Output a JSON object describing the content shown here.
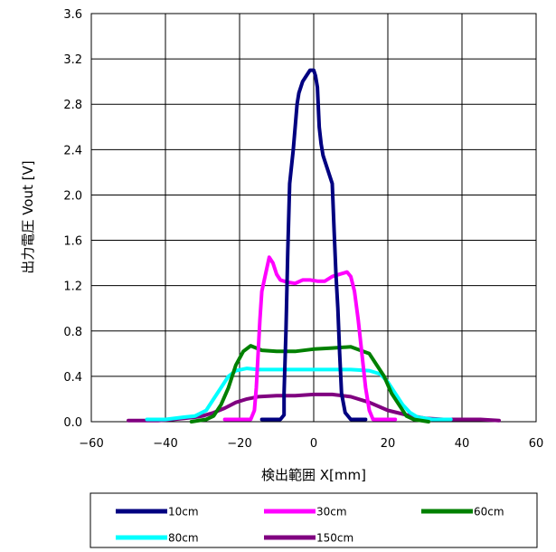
{
  "chart_data": {
    "type": "line",
    "xlabel": "検出範囲  X[mm]",
    "ylabel": "出力電圧  Vout [V]",
    "xlim": [
      -60,
      60
    ],
    "ylim": [
      0,
      3.6
    ],
    "xticks": [
      "−60",
      "−40",
      "−20",
      "0",
      "20",
      "40",
      "60"
    ],
    "yticks": [
      "0.0",
      "0.4",
      "0.8",
      "1.2",
      "1.6",
      "2.0",
      "2.4",
      "2.8",
      "3.2",
      "3.6"
    ],
    "grid": true,
    "legend_position": "bottom",
    "series": [
      {
        "name": "10cm",
        "color": "#000080",
        "points": [
          [
            -14,
            0.02
          ],
          [
            -9,
            0.02
          ],
          [
            -8,
            0.06
          ],
          [
            -8,
            0.25
          ],
          [
            -7.5,
            0.8
          ],
          [
            -7,
            1.5
          ],
          [
            -6.5,
            2.1
          ],
          [
            -6,
            2.25
          ],
          [
            -5.5,
            2.4
          ],
          [
            -5,
            2.6
          ],
          [
            -4.5,
            2.8
          ],
          [
            -4,
            2.9
          ],
          [
            -3,
            3.0
          ],
          [
            -2,
            3.05
          ],
          [
            -1,
            3.1
          ],
          [
            0,
            3.1
          ],
          [
            0.5,
            3.05
          ],
          [
            1,
            2.95
          ],
          [
            1.5,
            2.6
          ],
          [
            2,
            2.45
          ],
          [
            2.5,
            2.35
          ],
          [
            3,
            2.3
          ],
          [
            4,
            2.2
          ],
          [
            5,
            2.1
          ],
          [
            5.5,
            1.7
          ],
          [
            6,
            1.3
          ],
          [
            6.5,
            1.0
          ],
          [
            7,
            0.6
          ],
          [
            7.5,
            0.25
          ],
          [
            8.5,
            0.08
          ],
          [
            10,
            0.02
          ],
          [
            14,
            0.02
          ]
        ]
      },
      {
        "name": "30cm",
        "color": "#ff00ff",
        "points": [
          [
            -24,
            0.02
          ],
          [
            -17,
            0.02
          ],
          [
            -16,
            0.1
          ],
          [
            -15.5,
            0.3
          ],
          [
            -15,
            0.6
          ],
          [
            -14.5,
            0.9
          ],
          [
            -14,
            1.15
          ],
          [
            -13,
            1.3
          ],
          [
            -12,
            1.45
          ],
          [
            -11,
            1.4
          ],
          [
            -10,
            1.3
          ],
          [
            -9,
            1.25
          ],
          [
            -7,
            1.23
          ],
          [
            -5,
            1.22
          ],
          [
            -3,
            1.25
          ],
          [
            -1,
            1.25
          ],
          [
            1,
            1.24
          ],
          [
            3,
            1.24
          ],
          [
            5,
            1.28
          ],
          [
            7,
            1.3
          ],
          [
            9,
            1.32
          ],
          [
            10,
            1.28
          ],
          [
            11,
            1.15
          ],
          [
            12,
            0.9
          ],
          [
            13,
            0.6
          ],
          [
            14,
            0.3
          ],
          [
            15,
            0.1
          ],
          [
            16,
            0.02
          ],
          [
            22,
            0.02
          ]
        ]
      },
      {
        "name": "60cm",
        "color": "#008000",
        "points": [
          [
            -33,
            0.0
          ],
          [
            -29,
            0.02
          ],
          [
            -27,
            0.05
          ],
          [
            -25,
            0.15
          ],
          [
            -23,
            0.3
          ],
          [
            -21,
            0.5
          ],
          [
            -19,
            0.62
          ],
          [
            -17,
            0.67
          ],
          [
            -14,
            0.63
          ],
          [
            -10,
            0.62
          ],
          [
            -5,
            0.62
          ],
          [
            0,
            0.64
          ],
          [
            5,
            0.65
          ],
          [
            10,
            0.66
          ],
          [
            15,
            0.6
          ],
          [
            17,
            0.5
          ],
          [
            19,
            0.4
          ],
          [
            21,
            0.25
          ],
          [
            23,
            0.15
          ],
          [
            25,
            0.05
          ],
          [
            27,
            0.02
          ],
          [
            31,
            0.0
          ]
        ]
      },
      {
        "name": "80cm",
        "color": "#00ffff",
        "points": [
          [
            -45,
            0.02
          ],
          [
            -40,
            0.02
          ],
          [
            -35,
            0.04
          ],
          [
            -32,
            0.05
          ],
          [
            -29,
            0.1
          ],
          [
            -27,
            0.2
          ],
          [
            -25,
            0.3
          ],
          [
            -23,
            0.4
          ],
          [
            -21,
            0.45
          ],
          [
            -18,
            0.47
          ],
          [
            -15,
            0.46
          ],
          [
            -10,
            0.46
          ],
          [
            -5,
            0.46
          ],
          [
            0,
            0.46
          ],
          [
            5,
            0.46
          ],
          [
            10,
            0.46
          ],
          [
            15,
            0.45
          ],
          [
            18,
            0.42
          ],
          [
            20,
            0.35
          ],
          [
            22,
            0.25
          ],
          [
            24,
            0.15
          ],
          [
            26,
            0.08
          ],
          [
            28,
            0.04
          ],
          [
            32,
            0.02
          ],
          [
            37,
            0.02
          ]
        ]
      },
      {
        "name": "150cm",
        "color": "#800080",
        "points": [
          [
            -50,
            0.01
          ],
          [
            -45,
            0.01
          ],
          [
            -42,
            0.01
          ],
          [
            -38,
            0.02
          ],
          [
            -35,
            0.03
          ],
          [
            -32,
            0.04
          ],
          [
            -30,
            0.05
          ],
          [
            -27,
            0.08
          ],
          [
            -24,
            0.12
          ],
          [
            -21,
            0.17
          ],
          [
            -18,
            0.2
          ],
          [
            -15,
            0.22
          ],
          [
            -10,
            0.23
          ],
          [
            -5,
            0.23
          ],
          [
            0,
            0.24
          ],
          [
            5,
            0.24
          ],
          [
            10,
            0.22
          ],
          [
            15,
            0.17
          ],
          [
            20,
            0.1
          ],
          [
            25,
            0.06
          ],
          [
            30,
            0.03
          ],
          [
            35,
            0.02
          ],
          [
            40,
            0.02
          ],
          [
            45,
            0.02
          ],
          [
            50,
            0.01
          ]
        ]
      }
    ]
  }
}
